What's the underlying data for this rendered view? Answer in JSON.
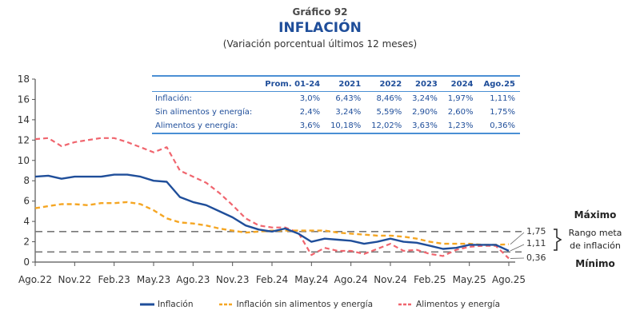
{
  "header": {
    "subtitle": "Gráfico 92",
    "title": "INFLACIÓN",
    "description": "(Variación porcentual últimos 12 meses)"
  },
  "table": {
    "columns": [
      "",
      "Prom. 01-24",
      "2021",
      "2022",
      "2023",
      "2024",
      "Ago.25"
    ],
    "rows": [
      {
        "label": "Inflación:",
        "values": [
          "3,0%",
          "6,43%",
          "8,46%",
          "3,24%",
          "1,97%",
          "1,11%"
        ]
      },
      {
        "label": "Sin alimentos y energía:",
        "values": [
          "2,4%",
          "3,24%",
          "5,59%",
          "2,90%",
          "2,60%",
          "1,75%"
        ]
      },
      {
        "label": "Alimentos y energía:",
        "values": [
          "3,6%",
          "10,18%",
          "12,02%",
          "3,63%",
          "1,23%",
          "0,36%"
        ]
      }
    ]
  },
  "side_labels": {
    "max": "Máximo",
    "min": "Mínimo",
    "range_line1": "Rango meta",
    "range_line2": "de inflación",
    "end_values": [
      "1,75",
      "1,11",
      "0,36"
    ]
  },
  "colors": {
    "inflacion": "#1f4e9a",
    "sin_alimentos": "#f5a623",
    "alimentos": "#f0656e",
    "reference": "#777777",
    "axis": "#555555"
  },
  "chart_data": {
    "type": "line",
    "title": "INFLACIÓN",
    "subtitle": "(Variación porcentual últimos 12 meses)",
    "xlabel": "",
    "ylabel": "",
    "ylim": [
      0,
      18
    ],
    "yticks": [
      0,
      2,
      4,
      6,
      8,
      10,
      12,
      14,
      16,
      18
    ],
    "x_tick_labels": [
      "Ago.22",
      "Nov.22",
      "Feb.23",
      "May.23",
      "Ago.23",
      "Nov.23",
      "Feb.24",
      "May.24",
      "Ago.24",
      "Nov.24",
      "Feb.25",
      "May.25",
      "Ago.25"
    ],
    "x": [
      "Ago.22",
      "Sep.22",
      "Oct.22",
      "Nov.22",
      "Dic.22",
      "Ene.23",
      "Feb.23",
      "Mar.23",
      "Abr.23",
      "May.23",
      "Jun.23",
      "Jul.23",
      "Ago.23",
      "Sep.23",
      "Oct.23",
      "Nov.23",
      "Dic.23",
      "Ene.24",
      "Feb.24",
      "Mar.24",
      "Abr.24",
      "May.24",
      "Jun.24",
      "Jul.24",
      "Ago.24",
      "Sep.24",
      "Oct.24",
      "Nov.24",
      "Dic.24",
      "Ene.25",
      "Feb.25",
      "Mar.25",
      "Abr.25",
      "May.25",
      "Jun.25",
      "Jul.25",
      "Ago.25"
    ],
    "series": [
      {
        "name": "Inflación",
        "style": "solid",
        "values": [
          8.4,
          8.5,
          8.2,
          8.4,
          8.4,
          8.4,
          8.6,
          8.6,
          8.4,
          8.0,
          7.9,
          6.4,
          5.9,
          5.6,
          5.0,
          4.4,
          3.6,
          3.2,
          3.0,
          3.3,
          2.8,
          2.0,
          2.3,
          2.2,
          2.1,
          1.8,
          2.0,
          2.3,
          2.0,
          1.9,
          1.6,
          1.3,
          1.4,
          1.7,
          1.7,
          1.7,
          1.11
        ]
      },
      {
        "name": "Inflación sin alimentos y energía",
        "style": "dashed",
        "values": [
          5.3,
          5.5,
          5.7,
          5.7,
          5.6,
          5.8,
          5.8,
          5.9,
          5.7,
          5.1,
          4.3,
          3.9,
          3.8,
          3.6,
          3.3,
          3.1,
          2.9,
          3.0,
          3.1,
          3.1,
          3.1,
          3.1,
          3.1,
          2.9,
          2.8,
          2.7,
          2.6,
          2.6,
          2.5,
          2.3,
          2.0,
          1.8,
          1.8,
          1.8,
          1.7,
          1.7,
          1.75
        ]
      },
      {
        "name": "Alimentos y energía",
        "style": "dashed",
        "values": [
          12.1,
          12.2,
          11.4,
          11.8,
          12.0,
          12.2,
          12.2,
          11.8,
          11.3,
          10.8,
          11.3,
          9.0,
          8.4,
          7.8,
          6.8,
          5.6,
          4.3,
          3.6,
          3.4,
          3.4,
          2.9,
          0.7,
          1.4,
          1.1,
          1.1,
          0.8,
          1.3,
          1.8,
          1.1,
          1.2,
          0.8,
          0.6,
          1.2,
          1.5,
          1.6,
          1.6,
          0.36
        ]
      }
    ],
    "reference_lines": [
      {
        "name": "Máximo",
        "value": 3
      },
      {
        "name": "Mínimo",
        "value": 1
      }
    ],
    "legend": {
      "position": "bottom",
      "entries": [
        "Inflación",
        "Inflación sin alimentos y energía",
        "Alimentos y energía"
      ]
    },
    "grid": false
  }
}
